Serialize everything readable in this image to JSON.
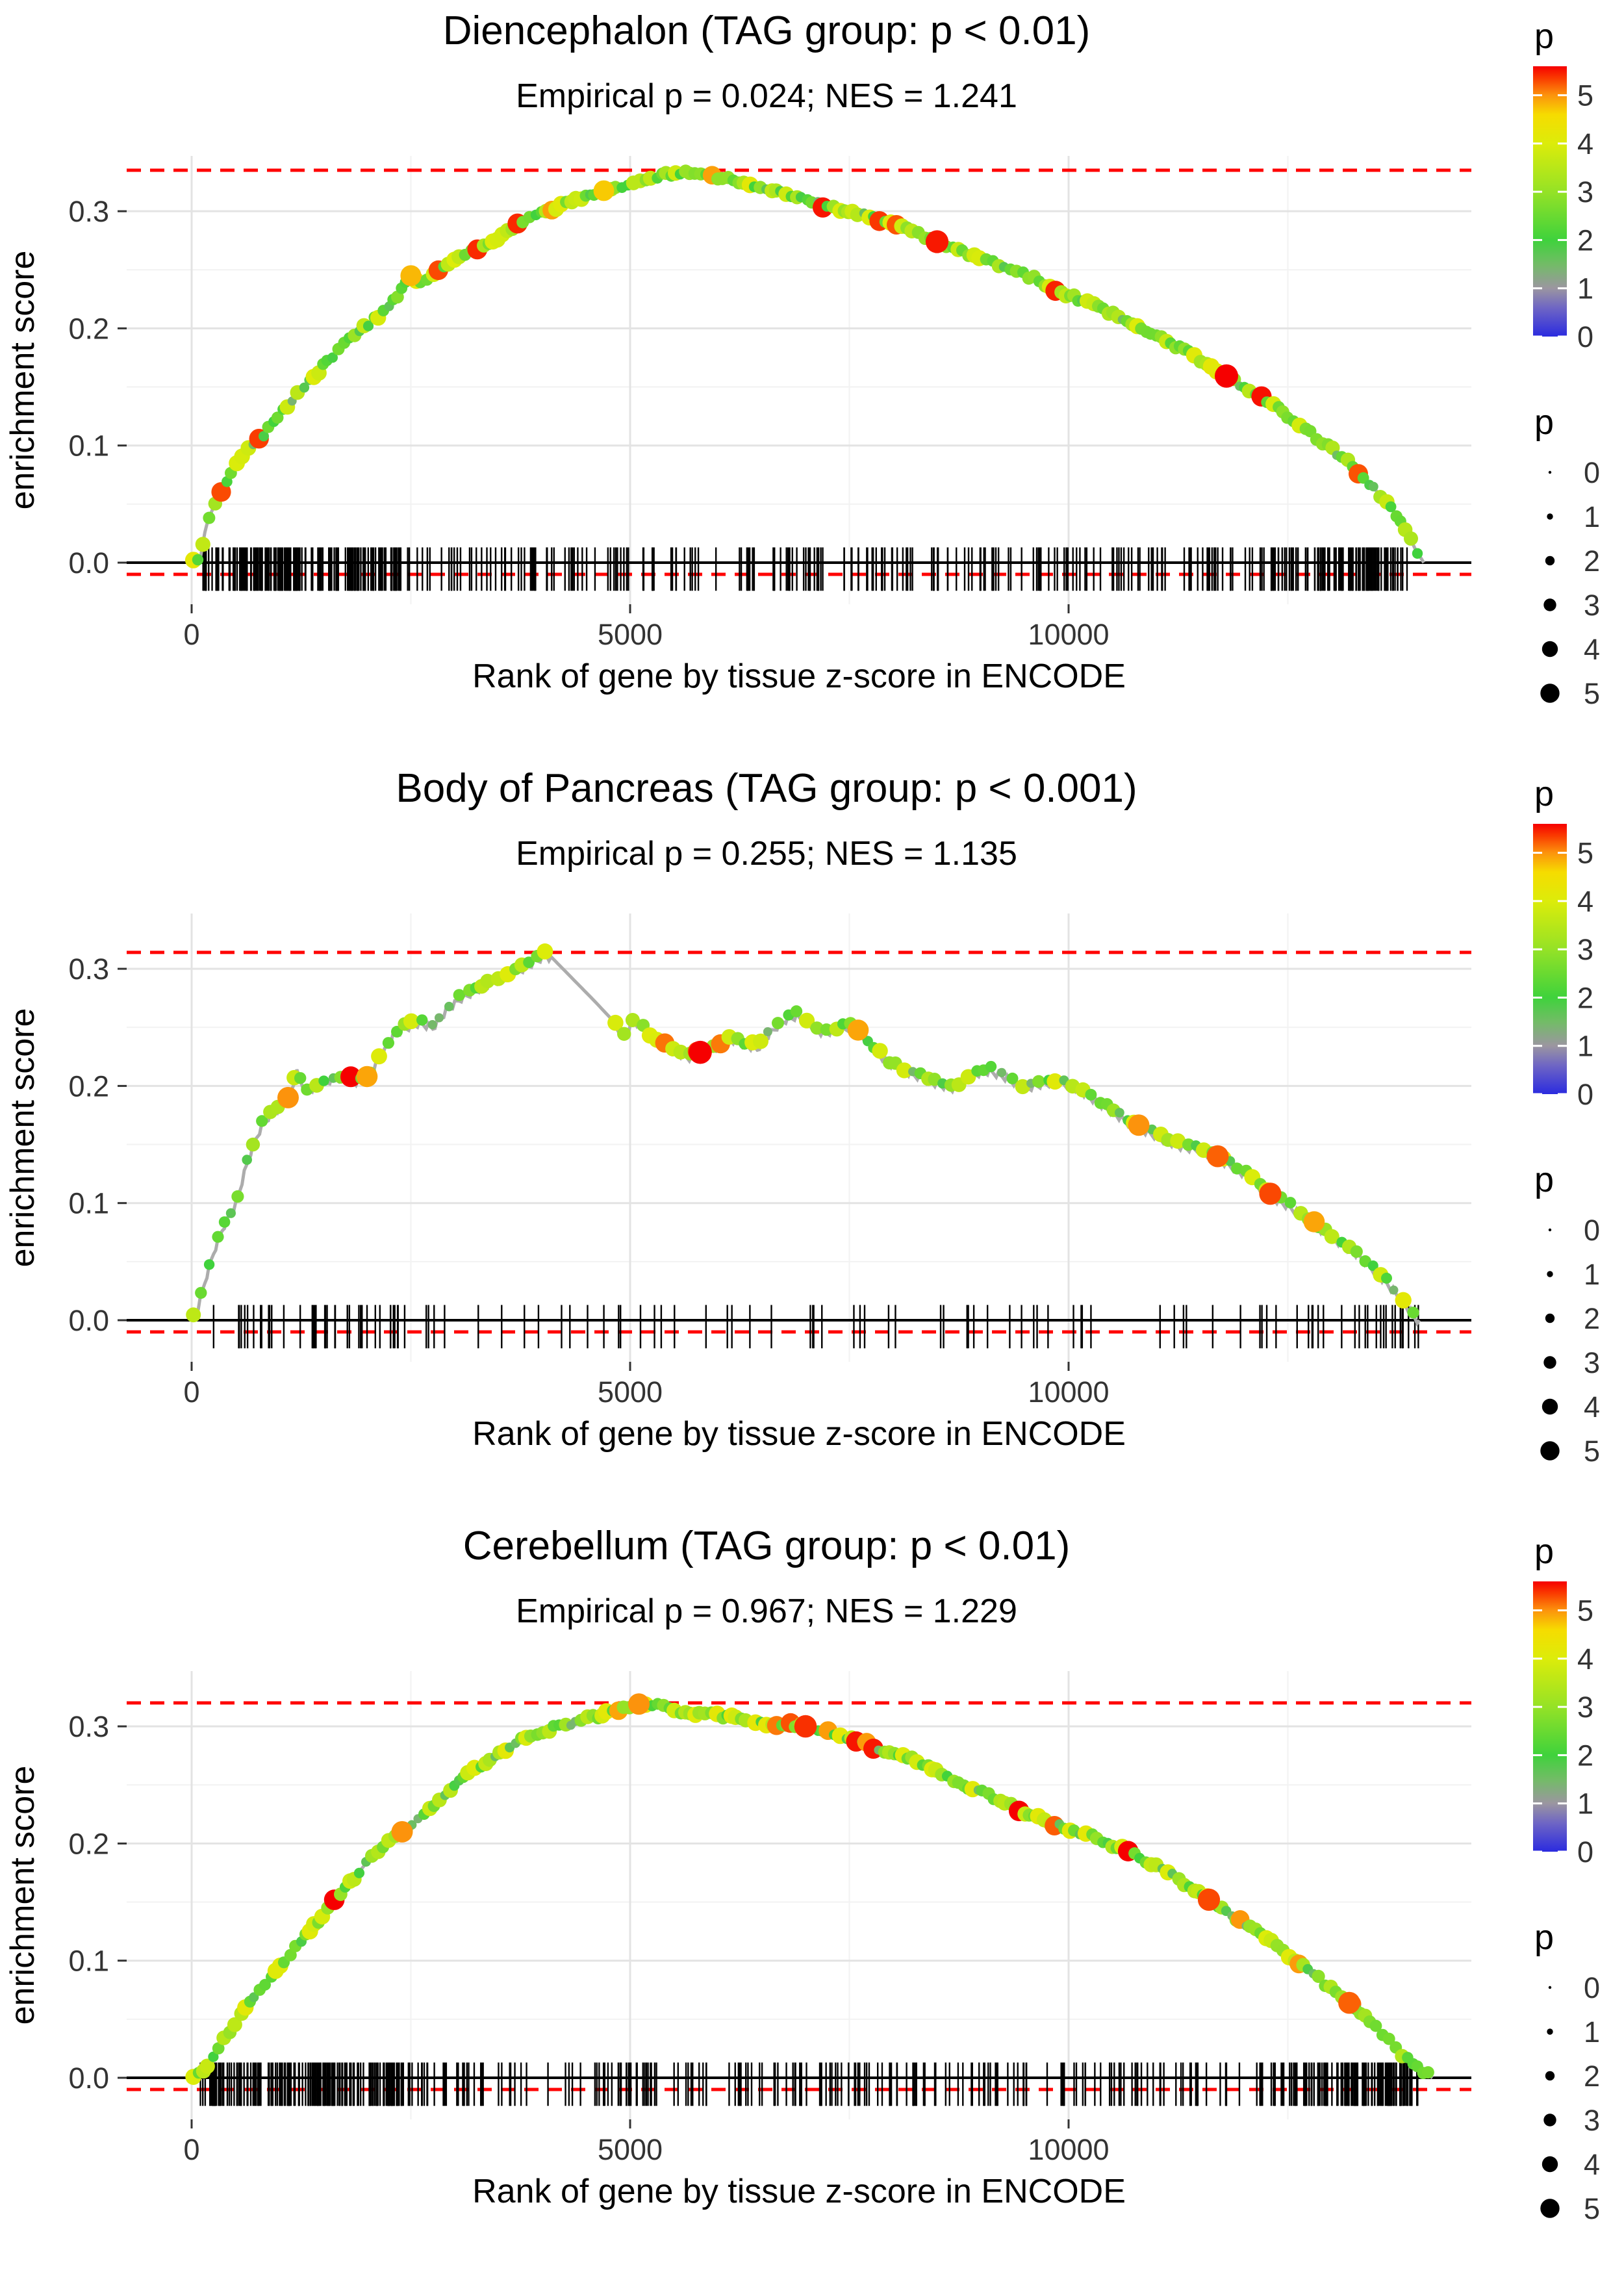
{
  "colors": {
    "dashed_line": "#FF0000",
    "zero_line": "#000000",
    "curve_line": "#ACACAC",
    "rug": "#000000",
    "grid_major": "#E3E3E3",
    "grid_minor": "#F2F2F2",
    "text": "#000000",
    "tick_text": "#333333",
    "legend_dot": "#000000"
  },
  "palette": [
    [
      0.0,
      "#2B2BDF"
    ],
    [
      0.6,
      "#6F66C4"
    ],
    [
      1.0,
      "#9B96A0"
    ],
    [
      1.5,
      "#72BC66"
    ],
    [
      2.0,
      "#3FD23C"
    ],
    [
      3.0,
      "#95E226"
    ],
    [
      4.0,
      "#DCEC0A"
    ],
    [
      4.6,
      "#F6DC00"
    ],
    [
      5.0,
      "#FC930C"
    ],
    [
      5.35,
      "#FA3C00"
    ],
    [
      5.6,
      "#F60000"
    ]
  ],
  "chart_data": [
    {
      "type": "line",
      "title": "Diencephalon (TAG group: p < 0.01)",
      "subtitle": "Empirical p = 0.024; NES = 1.241",
      "xlabel": "Rank of gene by tissue z-score in ENCODE",
      "ylabel": "enrichment score",
      "xticks": [
        {
          "label": "0",
          "value": 0
        },
        {
          "label": "5000",
          "value": 5000
        },
        {
          "label": "10000",
          "value": 10000
        }
      ],
      "yticks": [
        {
          "label": "0.0",
          "value": 0
        },
        {
          "label": "0.1",
          "value": 0.1
        },
        {
          "label": "0.2",
          "value": 0.2
        },
        {
          "label": "0.3",
          "value": 0.3
        }
      ],
      "x_minor": [
        2500,
        7500,
        12500
      ],
      "y_minor": [
        0.05,
        0.15,
        0.25
      ],
      "xlim": [
        -740,
        14600
      ],
      "ylim": [
        -0.035,
        0.347
      ],
      "dashed_max_es": 0.335,
      "dashed_min_es": -0.01,
      "peak_rank": 5600,
      "curve": [
        [
          0,
          0
        ],
        [
          100,
          0.004
        ],
        [
          160,
          0.03
        ],
        [
          250,
          0.048
        ],
        [
          350,
          0.062
        ],
        [
          450,
          0.075
        ],
        [
          560,
          0.09
        ],
        [
          700,
          0.1
        ],
        [
          850,
          0.112
        ],
        [
          1000,
          0.125
        ],
        [
          1150,
          0.14
        ],
        [
          1350,
          0.155
        ],
        [
          1550,
          0.172
        ],
        [
          1750,
          0.188
        ],
        [
          1950,
          0.2
        ],
        [
          2150,
          0.212
        ],
        [
          2350,
          0.228
        ],
        [
          2500,
          0.245
        ],
        [
          2650,
          0.238
        ],
        [
          2800,
          0.248
        ],
        [
          3000,
          0.258
        ],
        [
          3200,
          0.266
        ],
        [
          3400,
          0.272
        ],
        [
          3600,
          0.282
        ],
        [
          3800,
          0.292
        ],
        [
          4000,
          0.298
        ],
        [
          4200,
          0.304
        ],
        [
          4400,
          0.31
        ],
        [
          4600,
          0.315
        ],
        [
          4800,
          0.32
        ],
        [
          5000,
          0.324
        ],
        [
          5200,
          0.328
        ],
        [
          5400,
          0.331
        ],
        [
          5600,
          0.334
        ],
        [
          5800,
          0.332
        ],
        [
          6000,
          0.329
        ],
        [
          6300,
          0.325
        ],
        [
          6600,
          0.318
        ],
        [
          6900,
          0.312
        ],
        [
          7200,
          0.305
        ],
        [
          7500,
          0.3
        ],
        [
          7800,
          0.294
        ],
        [
          8100,
          0.286
        ],
        [
          8400,
          0.277
        ],
        [
          8700,
          0.268
        ],
        [
          9000,
          0.26
        ],
        [
          9300,
          0.252
        ],
        [
          9600,
          0.243
        ],
        [
          9900,
          0.232
        ],
        [
          10200,
          0.222
        ],
        [
          10500,
          0.212
        ],
        [
          10800,
          0.2
        ],
        [
          11100,
          0.19
        ],
        [
          11400,
          0.178
        ],
        [
          11700,
          0.164
        ],
        [
          12000,
          0.15
        ],
        [
          12300,
          0.136
        ],
        [
          12600,
          0.12
        ],
        [
          12900,
          0.103
        ],
        [
          13200,
          0.085
        ],
        [
          13500,
          0.062
        ],
        [
          13700,
          0.045
        ],
        [
          13850,
          0.028
        ],
        [
          13950,
          0.012
        ],
        [
          14050,
          0
        ]
      ],
      "rug_count": 480,
      "seed": 101,
      "dot_step": 60,
      "dot_gaps": [],
      "sawtooth": false,
      "highlight_dots": [
        [
          2500,
          4.8
        ],
        [
          4700,
          4.7
        ],
        [
          8500,
          5.5
        ],
        [
          11800,
          5.7
        ]
      ],
      "legend": {
        "color_title": "p",
        "color_ticks": [
          5,
          4,
          3,
          2,
          1,
          0
        ],
        "color_max": 5.6,
        "size_title": "p",
        "size_ticks": [
          0,
          1,
          2,
          3,
          4,
          5
        ]
      }
    },
    {
      "type": "line",
      "title": "Body of Pancreas (TAG group: p < 0.001)",
      "subtitle": "Empirical p = 0.255; NES = 1.135",
      "xlabel": "Rank of gene by tissue z-score in ENCODE",
      "ylabel": "enrichment score",
      "xticks": [
        {
          "label": "0",
          "value": 0
        },
        {
          "label": "5000",
          "value": 5000
        },
        {
          "label": "10000",
          "value": 10000
        }
      ],
      "yticks": [
        {
          "label": "0.0",
          "value": 0
        },
        {
          "label": "0.1",
          "value": 0.1
        },
        {
          "label": "0.2",
          "value": 0.2
        },
        {
          "label": "0.3",
          "value": 0.3
        }
      ],
      "x_minor": [
        2500,
        7500,
        12500
      ],
      "y_minor": [
        0.05,
        0.15,
        0.25
      ],
      "xlim": [
        -740,
        14600
      ],
      "ylim": [
        -0.035,
        0.347
      ],
      "dashed_max_es": 0.314,
      "dashed_min_es": -0.01,
      "peak_rank": 4050,
      "curve": [
        [
          0,
          0
        ],
        [
          80,
          0.015
        ],
        [
          150,
          0.035
        ],
        [
          250,
          0.06
        ],
        [
          350,
          0.08
        ],
        [
          420,
          0.09
        ],
        [
          500,
          0.1
        ],
        [
          600,
          0.128
        ],
        [
          700,
          0.152
        ],
        [
          800,
          0.168
        ],
        [
          900,
          0.178
        ],
        [
          1000,
          0.183
        ],
        [
          1100,
          0.19
        ],
        [
          1200,
          0.214
        ],
        [
          1300,
          0.198
        ],
        [
          1450,
          0.202
        ],
        [
          1600,
          0.208
        ],
        [
          1750,
          0.21
        ],
        [
          1900,
          0.205
        ],
        [
          2000,
          0.208
        ],
        [
          2100,
          0.22
        ],
        [
          2200,
          0.232
        ],
        [
          2300,
          0.246
        ],
        [
          2450,
          0.252
        ],
        [
          2600,
          0.256
        ],
        [
          2750,
          0.252
        ],
        [
          2900,
          0.266
        ],
        [
          3050,
          0.276
        ],
        [
          3200,
          0.282
        ],
        [
          3350,
          0.288
        ],
        [
          3500,
          0.293
        ],
        [
          3650,
          0.298
        ],
        [
          3800,
          0.303
        ],
        [
          3950,
          0.31
        ],
        [
          4050,
          0.314
        ],
        [
          4600,
          0.272
        ],
        [
          4850,
          0.252
        ],
        [
          4950,
          0.245
        ],
        [
          5050,
          0.258
        ],
        [
          5150,
          0.252
        ],
        [
          5250,
          0.242
        ],
        [
          5400,
          0.236
        ],
        [
          5550,
          0.23
        ],
        [
          5700,
          0.226
        ],
        [
          5850,
          0.23
        ],
        [
          6000,
          0.236
        ],
        [
          6150,
          0.242
        ],
        [
          6300,
          0.238
        ],
        [
          6450,
          0.234
        ],
        [
          6600,
          0.248
        ],
        [
          6750,
          0.258
        ],
        [
          6900,
          0.262
        ],
        [
          7050,
          0.255
        ],
        [
          7200,
          0.247
        ],
        [
          7350,
          0.25
        ],
        [
          7500,
          0.253
        ],
        [
          7650,
          0.245
        ],
        [
          7800,
          0.232
        ],
        [
          7950,
          0.222
        ],
        [
          8100,
          0.216
        ],
        [
          8300,
          0.21
        ],
        [
          8500,
          0.204
        ],
        [
          8700,
          0.2
        ],
        [
          8900,
          0.212
        ],
        [
          9100,
          0.215
        ],
        [
          9300,
          0.209
        ],
        [
          9500,
          0.2
        ],
        [
          9700,
          0.204
        ],
        [
          9900,
          0.206
        ],
        [
          10100,
          0.2
        ],
        [
          10300,
          0.19
        ],
        [
          10500,
          0.18
        ],
        [
          10700,
          0.17
        ],
        [
          10900,
          0.163
        ],
        [
          11100,
          0.156
        ],
        [
          11300,
          0.15
        ],
        [
          11500,
          0.148
        ],
        [
          11700,
          0.14
        ],
        [
          11900,
          0.132
        ],
        [
          12100,
          0.122
        ],
        [
          12300,
          0.108
        ],
        [
          12500,
          0.1
        ],
        [
          12700,
          0.09
        ],
        [
          12900,
          0.078
        ],
        [
          13100,
          0.068
        ],
        [
          13300,
          0.058
        ],
        [
          13500,
          0.044
        ],
        [
          13700,
          0.028
        ],
        [
          13900,
          0.01
        ],
        [
          14000,
          0
        ]
      ],
      "rug_count": 120,
      "seed": 202,
      "dot_step": 95,
      "dot_gaps": [
        [
          4100,
          4800
        ]
      ],
      "sawtooth": true,
      "highlight_dots": [
        [
          1100,
          5.0
        ],
        [
          2000,
          4.9
        ],
        [
          5800,
          5.6
        ],
        [
          7600,
          4.9
        ],
        [
          10800,
          5.0
        ],
        [
          11700,
          5.2
        ],
        [
          12300,
          5.3
        ],
        [
          12800,
          4.9
        ]
      ],
      "legend": {
        "color_title": "p",
        "color_ticks": [
          5,
          4,
          3,
          2,
          1,
          0
        ],
        "color_max": 5.6,
        "size_title": "p",
        "size_ticks": [
          0,
          1,
          2,
          3,
          4,
          5
        ]
      }
    },
    {
      "type": "line",
      "title": "Cerebellum (TAG group: p < 0.01)",
      "subtitle": "Empirical p = 0.967; NES = 1.229",
      "xlabel": "Rank of gene by tissue z-score in ENCODE",
      "ylabel": "enrichment score",
      "xticks": [
        {
          "label": "0",
          "value": 0
        },
        {
          "label": "5000",
          "value": 5000
        },
        {
          "label": "10000",
          "value": 10000
        }
      ],
      "yticks": [
        {
          "label": "0.0",
          "value": 0
        },
        {
          "label": "0.1",
          "value": 0.1
        },
        {
          "label": "0.2",
          "value": 0.2
        },
        {
          "label": "0.3",
          "value": 0.3
        }
      ],
      "x_minor": [
        2500,
        7500,
        12500
      ],
      "y_minor": [
        0.05,
        0.15,
        0.25
      ],
      "xlim": [
        -740,
        14600
      ],
      "ylim": [
        -0.035,
        0.347
      ],
      "dashed_max_es": 0.32,
      "dashed_min_es": -0.01,
      "peak_rank": 5200,
      "curve": [
        [
          0,
          0
        ],
        [
          150,
          0.008
        ],
        [
          300,
          0.026
        ],
        [
          450,
          0.042
        ],
        [
          600,
          0.06
        ],
        [
          750,
          0.072
        ],
        [
          900,
          0.086
        ],
        [
          1050,
          0.1
        ],
        [
          1200,
          0.112
        ],
        [
          1400,
          0.13
        ],
        [
          1600,
          0.148
        ],
        [
          1800,
          0.166
        ],
        [
          2000,
          0.184
        ],
        [
          2200,
          0.2
        ],
        [
          2400,
          0.21
        ],
        [
          2600,
          0.222
        ],
        [
          2800,
          0.236
        ],
        [
          3000,
          0.25
        ],
        [
          3200,
          0.262
        ],
        [
          3400,
          0.272
        ],
        [
          3600,
          0.282
        ],
        [
          3800,
          0.29
        ],
        [
          4000,
          0.296
        ],
        [
          4200,
          0.3
        ],
        [
          4400,
          0.304
        ],
        [
          4600,
          0.308
        ],
        [
          4800,
          0.313
        ],
        [
          5000,
          0.318
        ],
        [
          5200,
          0.32
        ],
        [
          5400,
          0.316
        ],
        [
          5600,
          0.312
        ],
        [
          5800,
          0.31
        ],
        [
          6000,
          0.31
        ],
        [
          6200,
          0.307
        ],
        [
          6400,
          0.304
        ],
        [
          6600,
          0.302
        ],
        [
          6800,
          0.302
        ],
        [
          7000,
          0.3
        ],
        [
          7200,
          0.296
        ],
        [
          7400,
          0.292
        ],
        [
          7600,
          0.288
        ],
        [
          7800,
          0.282
        ],
        [
          8000,
          0.278
        ],
        [
          8200,
          0.272
        ],
        [
          8400,
          0.266
        ],
        [
          8600,
          0.258
        ],
        [
          8800,
          0.25
        ],
        [
          9000,
          0.244
        ],
        [
          9200,
          0.238
        ],
        [
          9400,
          0.23
        ],
        [
          9600,
          0.224
        ],
        [
          9800,
          0.217
        ],
        [
          10000,
          0.212
        ],
        [
          10200,
          0.208
        ],
        [
          10400,
          0.202
        ],
        [
          10600,
          0.196
        ],
        [
          10800,
          0.188
        ],
        [
          11000,
          0.18
        ],
        [
          11200,
          0.172
        ],
        [
          11400,
          0.162
        ],
        [
          11600,
          0.152
        ],
        [
          11800,
          0.142
        ],
        [
          12000,
          0.132
        ],
        [
          12300,
          0.117
        ],
        [
          12600,
          0.1
        ],
        [
          12900,
          0.082
        ],
        [
          13200,
          0.064
        ],
        [
          13500,
          0.044
        ],
        [
          13800,
          0.02
        ],
        [
          14000,
          0.008
        ],
        [
          14150,
          0
        ]
      ],
      "rug_count": 470,
      "seed": 303,
      "dot_step": 60,
      "dot_gaps": [],
      "sawtooth": false,
      "highlight_dots": [
        [
          2400,
          5.0
        ],
        [
          5100,
          5.0
        ],
        [
          7000,
          5.4
        ],
        [
          11600,
          5.3
        ],
        [
          13200,
          5.2
        ]
      ],
      "legend": {
        "color_title": "p",
        "color_ticks": [
          5,
          4,
          3,
          2,
          1,
          0
        ],
        "color_max": 5.6,
        "size_title": "p",
        "size_ticks": [
          0,
          1,
          2,
          3,
          4,
          5
        ]
      }
    }
  ]
}
